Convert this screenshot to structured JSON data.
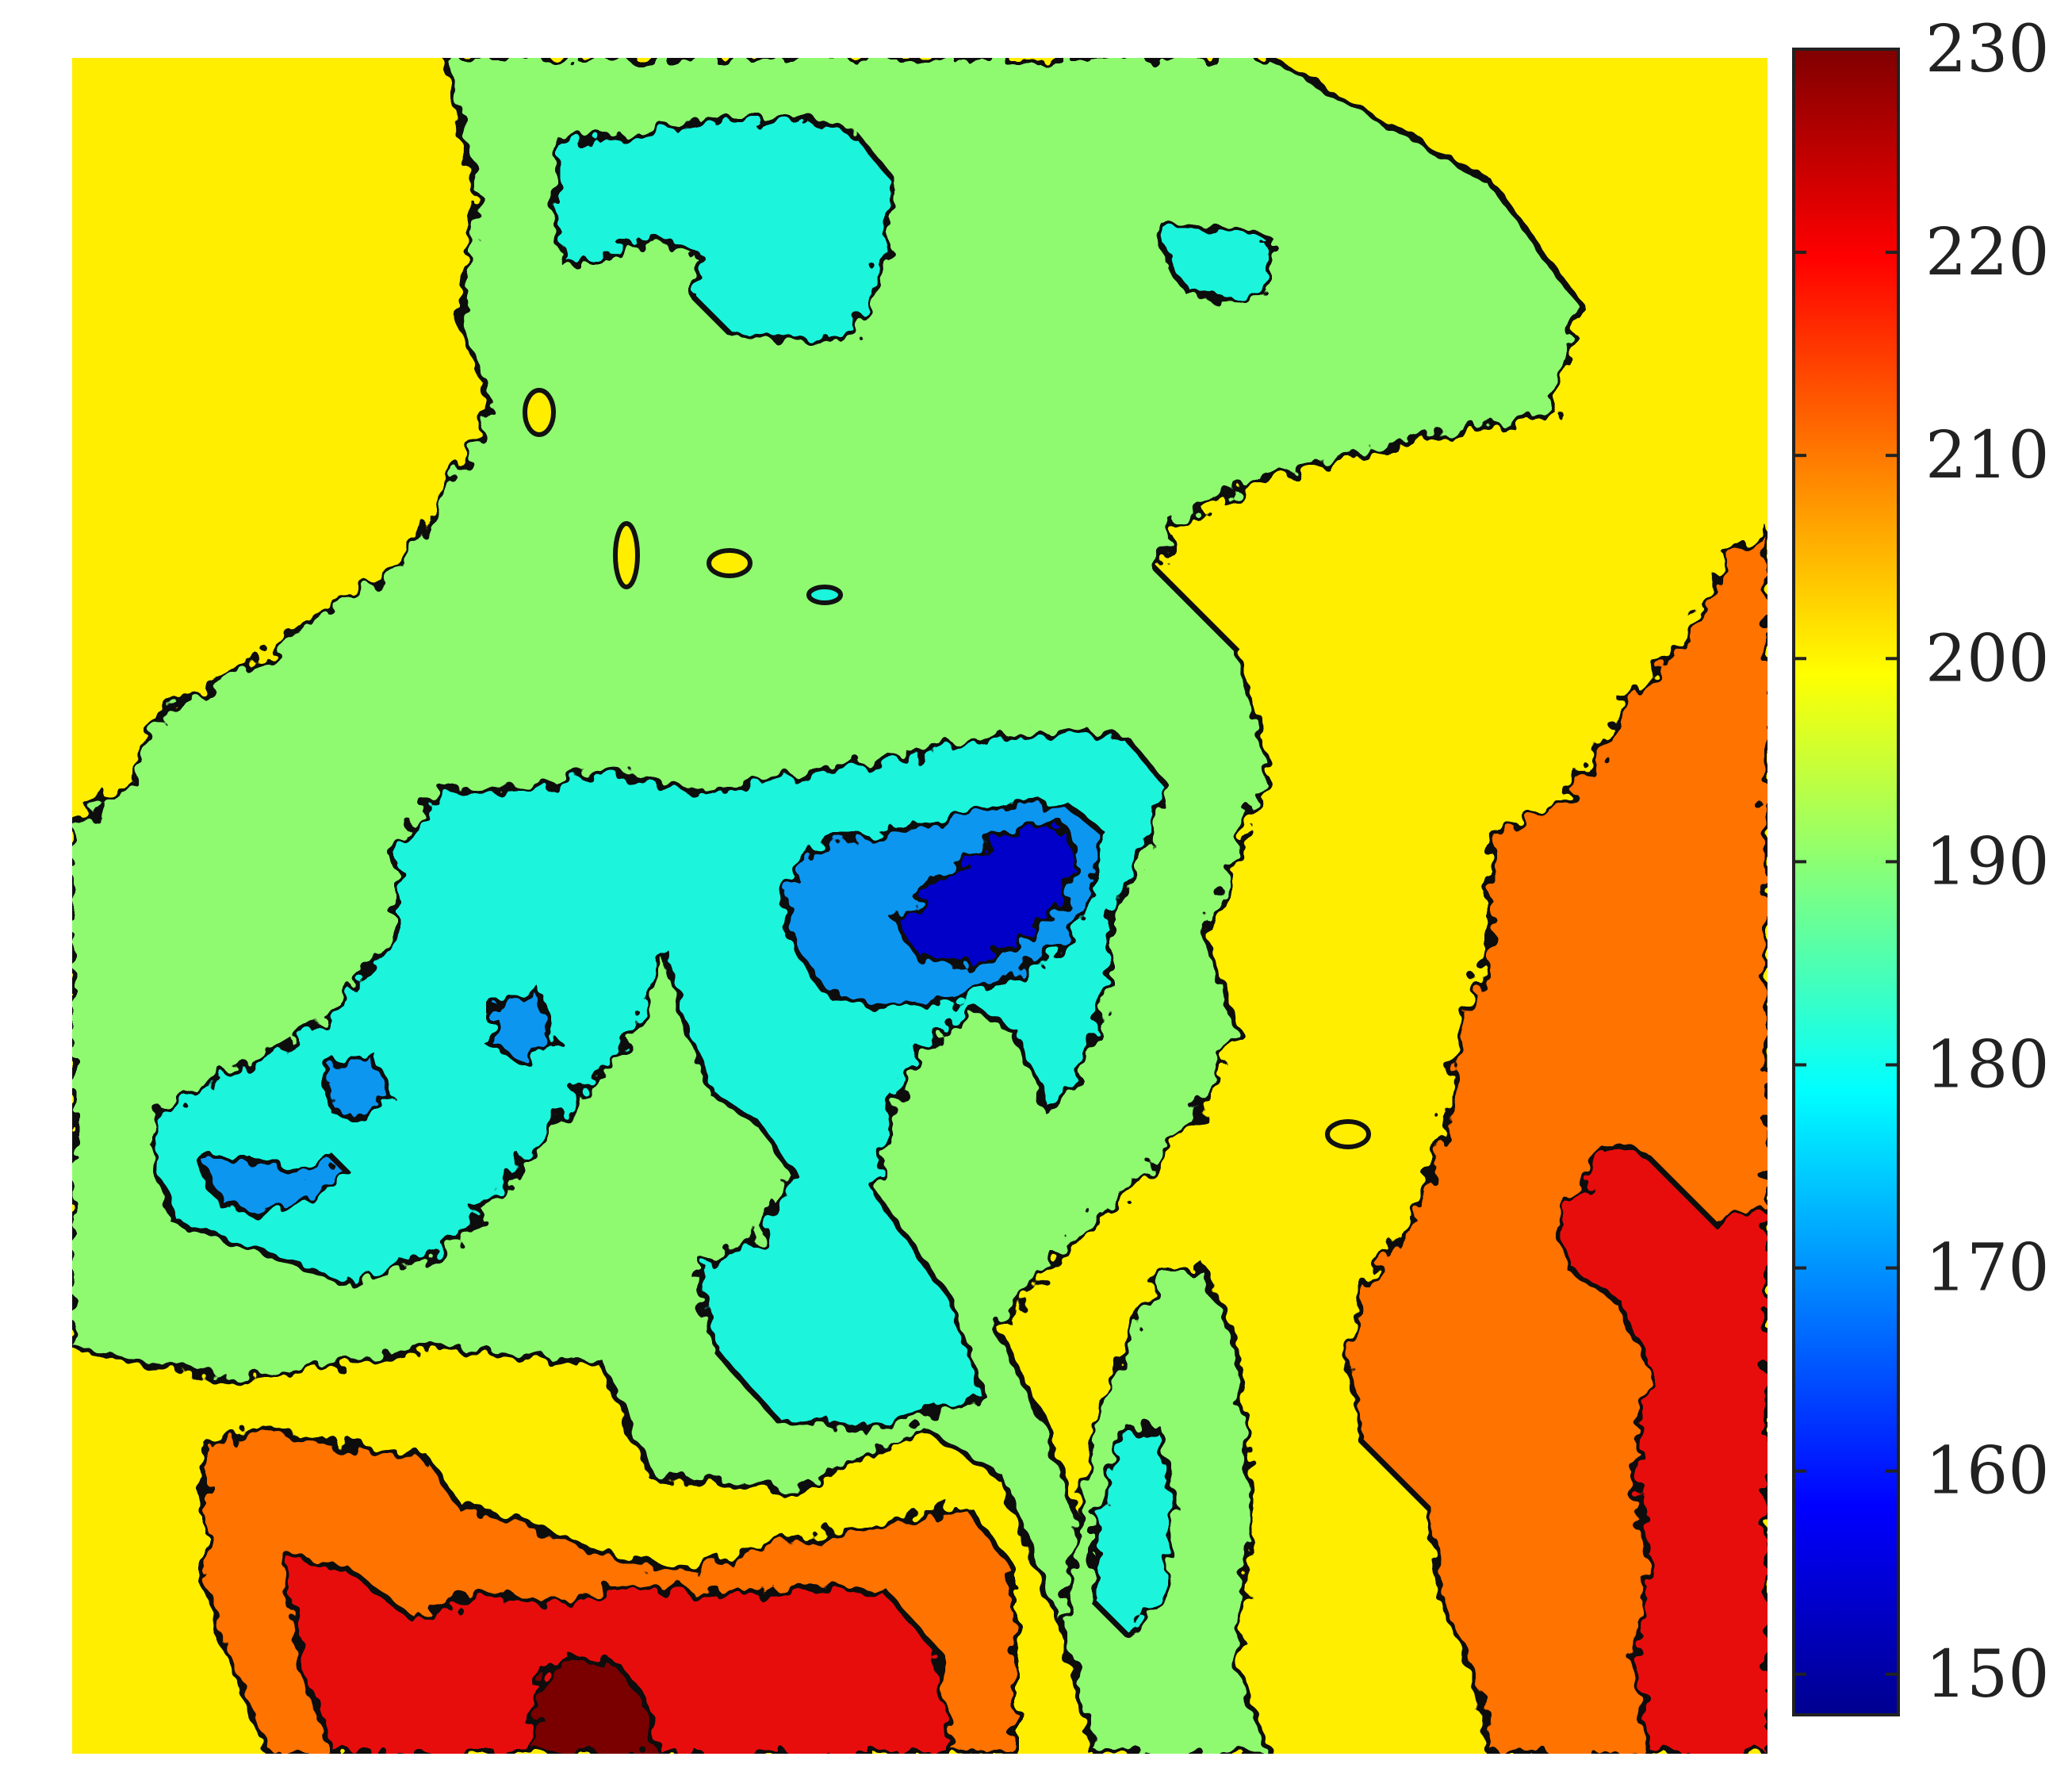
{
  "chart_data": {
    "type": "heatmap",
    "subtype": "filled-contour",
    "title": "",
    "xlabel": "",
    "ylabel": "",
    "colormap": "jet",
    "contour_levels": [
      150,
      160,
      170,
      180,
      190,
      200,
      210,
      220,
      230
    ],
    "colorbar": {
      "location": "right",
      "range": [
        148,
        230
      ],
      "ticks": [
        150,
        160,
        170,
        180,
        190,
        200,
        210,
        220,
        230
      ],
      "tick_labels": [
        "150",
        "160",
        "170",
        "180",
        "190",
        "200",
        "210",
        "220",
        "230"
      ]
    },
    "level_colors": {
      "150-160": "#0000C8",
      "160-170": "#0A96F0",
      "170-180": "#1AF5DC",
      "180-190": "#8FFA70",
      "190-200": "#FFEE00",
      "200-210": "#FF7300",
      "210-220": "#E80C0C",
      "220-230": "#7A0000"
    },
    "regions": [
      {
        "name": "top-center-low",
        "level_range": [
          170,
          180
        ],
        "approx_center": [
          0.42,
          0.08
        ]
      },
      {
        "name": "top-right-low",
        "level_range": [
          170,
          180
        ],
        "approx_center": [
          0.66,
          0.12
        ]
      },
      {
        "name": "central-trough",
        "level_range": [
          170,
          180
        ],
        "approx_center": [
          0.38,
          0.52
        ]
      },
      {
        "name": "central-minimum",
        "level_range": [
          150,
          160
        ],
        "approx_center": [
          0.55,
          0.48
        ]
      },
      {
        "name": "left-minimum",
        "level_range": [
          160,
          170
        ],
        "approx_center": [
          0.11,
          0.66
        ]
      },
      {
        "name": "right-high",
        "level_range": [
          200,
          210
        ],
        "approx_center": [
          0.9,
          0.62
        ]
      },
      {
        "name": "right-peak",
        "level_range": [
          210,
          220
        ],
        "approx_center": [
          0.96,
          0.85
        ]
      },
      {
        "name": "bottom-high",
        "level_range": [
          210,
          220
        ],
        "approx_center": [
          0.35,
          0.96
        ]
      },
      {
        "name": "bottom-peak",
        "level_range": [
          220,
          230
        ],
        "approx_center": [
          0.31,
          0.98
        ]
      }
    ]
  }
}
